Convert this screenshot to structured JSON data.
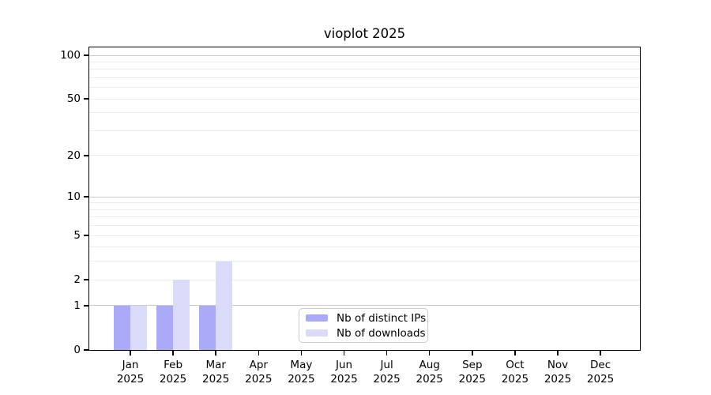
{
  "chart_data": {
    "type": "bar",
    "title": "vioplot 2025",
    "categories": [
      "Jan",
      "Feb",
      "Mar",
      "Apr",
      "May",
      "Jun",
      "Jul",
      "Aug",
      "Sep",
      "Oct",
      "Nov",
      "Dec"
    ],
    "year_label": "2025",
    "series": [
      {
        "name": "Nb of distinct IPs",
        "color": "#aaaaf8",
        "values": [
          1,
          1,
          1,
          0,
          0,
          0,
          0,
          0,
          0,
          0,
          0,
          0
        ]
      },
      {
        "name": "Nb of downloads",
        "color": "#dadaf9",
        "values": [
          1,
          2,
          3,
          0,
          0,
          0,
          0,
          0,
          0,
          0,
          0,
          0
        ]
      }
    ],
    "xlabel": "",
    "ylabel": "",
    "yscale": "log1p",
    "ylim": [
      0,
      113
    ],
    "yticks": [
      0,
      1,
      2,
      5,
      10,
      20,
      50,
      100
    ],
    "major_grid_values": [
      1,
      10,
      100
    ],
    "minor_grid_values": [
      2,
      3,
      4,
      5,
      6,
      7,
      8,
      9,
      20,
      30,
      40,
      50,
      60,
      70,
      80,
      90
    ],
    "grid_major_color": "#c9c9c9",
    "grid_minor_color": "#ededed",
    "grid": "on",
    "legend_position": "inside-bottom-center"
  }
}
